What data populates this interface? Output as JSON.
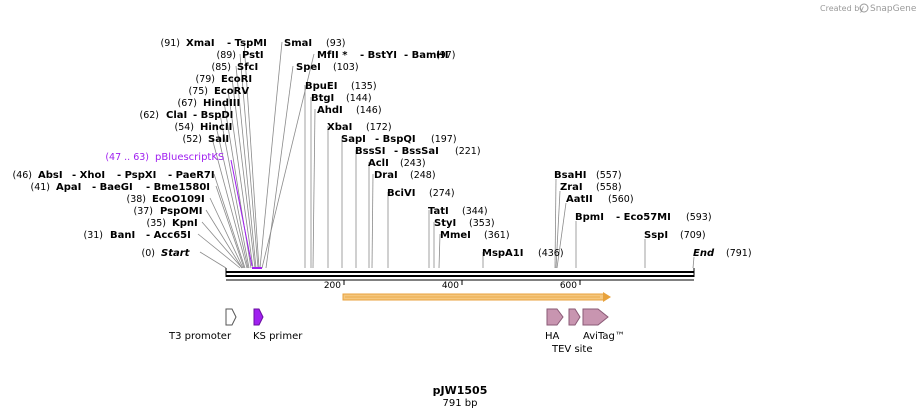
{
  "credit": {
    "prefix": "Created by",
    "brand": "SnapGene"
  },
  "plasmid": {
    "name": "pJW1505",
    "length_label": "791 bp"
  },
  "ruler": {
    "ticks": [
      "200",
      "400",
      "600"
    ]
  },
  "sites": [
    {
      "pos": "(91)",
      "names": [
        "XmaI",
        "- TspMI"
      ]
    },
    {
      "pos": "(89)",
      "names": [
        "PstI"
      ]
    },
    {
      "pos": "(85)",
      "names": [
        "SfcI"
      ]
    },
    {
      "pos": "(79)",
      "names": [
        "EcoRI"
      ]
    },
    {
      "pos": "(75)",
      "names": [
        "EcoRV"
      ]
    },
    {
      "pos": "(67)",
      "names": [
        "HindIII"
      ]
    },
    {
      "pos": "(62)",
      "names": [
        "ClaI",
        "- BspDI"
      ]
    },
    {
      "pos": "(54)",
      "names": [
        "HincII"
      ]
    },
    {
      "pos": "(52)",
      "names": [
        "SalI"
      ]
    },
    {
      "pos": "(46)",
      "names": [
        "AbsI",
        "- XhoI",
        "- PspXI",
        "- PaeR7I"
      ]
    },
    {
      "pos": "(41)",
      "names": [
        "ApaI",
        "- BaeGI",
        "- Bme1580I"
      ]
    },
    {
      "pos": "(38)",
      "names": [
        "EcoO109I"
      ]
    },
    {
      "pos": "(37)",
      "names": [
        "PspOMI"
      ]
    },
    {
      "pos": "(35)",
      "names": [
        "KpnI"
      ]
    },
    {
      "pos": "(31)",
      "names": [
        "BanI",
        "- Acc65I"
      ]
    },
    {
      "pos": "(0)",
      "names": [
        "Start"
      ]
    },
    {
      "pos": "(93)",
      "names": [
        "SmaI"
      ]
    },
    {
      "pos": "(97)",
      "names": [
        "MfII *",
        "- BstYI",
        "- BamHI"
      ]
    },
    {
      "pos": "(103)",
      "names": [
        "SpeI"
      ]
    },
    {
      "pos": "(135)",
      "names": [
        "BpuEI"
      ]
    },
    {
      "pos": "(144)",
      "names": [
        "BtgI"
      ]
    },
    {
      "pos": "(146)",
      "names": [
        "AhdI"
      ]
    },
    {
      "pos": "(172)",
      "names": [
        "XbaI"
      ]
    },
    {
      "pos": "(197)",
      "names": [
        "SapI",
        "- BspQI"
      ]
    },
    {
      "pos": "(221)",
      "names": [
        "BssSI",
        "- BssSaI"
      ]
    },
    {
      "pos": "(243)",
      "names": [
        "AclI"
      ]
    },
    {
      "pos": "(248)",
      "names": [
        "DraI"
      ]
    },
    {
      "pos": "(274)",
      "names": [
        "BciVI"
      ]
    },
    {
      "pos": "(344)",
      "names": [
        "TatI"
      ]
    },
    {
      "pos": "(353)",
      "names": [
        "StyI"
      ]
    },
    {
      "pos": "(361)",
      "names": [
        "MmeI"
      ]
    },
    {
      "pos": "(436)",
      "names": [
        "MspA1I"
      ]
    },
    {
      "pos": "(557)",
      "names": [
        "BsaHI"
      ]
    },
    {
      "pos": "(558)",
      "names": [
        "ZraI"
      ]
    },
    {
      "pos": "(560)",
      "names": [
        "AatII"
      ]
    },
    {
      "pos": "(593)",
      "names": [
        "BpmI",
        "- Eco57MI"
      ]
    },
    {
      "pos": "(709)",
      "names": [
        "SspI"
      ]
    },
    {
      "pos": "(791)",
      "names": [
        "End"
      ]
    }
  ],
  "primer_binding": {
    "range": "(47 .. 63)",
    "name": "pBluescriptKS"
  },
  "features": {
    "t3_promoter": "T3 promoter",
    "ks_primer": "KS primer",
    "ha": "HA",
    "tev_site": "TEV site",
    "avitag": "AviTag™"
  },
  "colors": {
    "orf": "#f5c77e",
    "orf_border": "#e8a23c",
    "primer": "#a020f0",
    "tag": "#c895b0"
  }
}
